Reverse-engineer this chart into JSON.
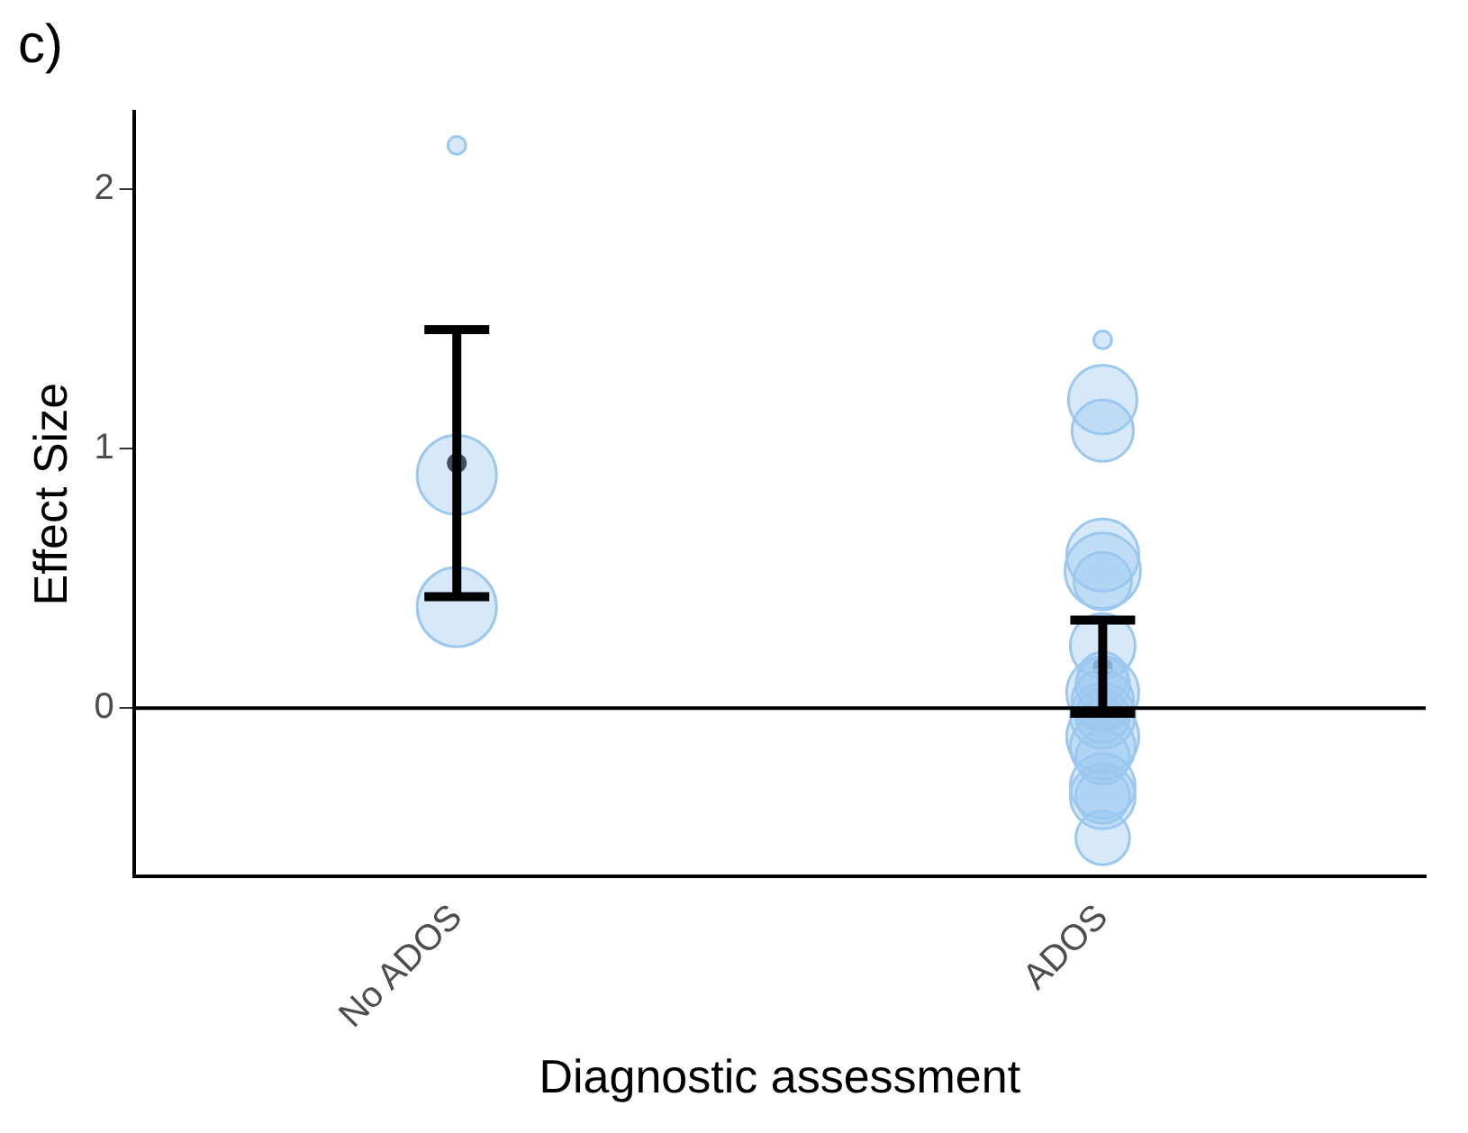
{
  "chart_data": {
    "type": "bubble",
    "title": "c)",
    "xlabel": "Diagnostic assessment",
    "ylabel": "Effect Size",
    "categories": [
      "No ADOS",
      "ADOS"
    ],
    "ylim": [
      -0.65,
      2.3
    ],
    "yticks": [
      0,
      1,
      2
    ],
    "series": [
      {
        "color": "#9cc8f0",
        "x": [
          "No ADOS",
          "No ADOS",
          "No ADOS",
          "ADOS",
          "ADOS",
          "ADOS",
          "ADOS",
          "ADOS",
          "ADOS",
          "ADOS",
          "ADOS",
          "ADOS",
          "ADOS",
          "ADOS",
          "ADOS",
          "ADOS",
          "ADOS",
          "ADOS",
          "ADOS",
          "ADOS",
          "ADOS",
          "ADOS",
          "ADOS"
        ],
        "values": [
          2.17,
          0.9,
          0.39,
          1.42,
          1.19,
          1.07,
          0.53,
          0.59,
          0.49,
          0.24,
          0.06,
          0.03,
          -0.03,
          -0.15,
          -0.3,
          -0.34,
          -0.34,
          -0.11,
          -0.03,
          -0.19,
          -0.5,
          0.09,
          0.12
        ],
        "sizes": [
          0.05,
          1,
          1,
          0.05,
          0.75,
          0.6,
          0.91,
          0.83,
          0.53,
          0.67,
          0.83,
          0.6,
          0.46,
          0.67,
          0.67,
          0.67,
          0.46,
          0.83,
          0.67,
          0.46,
          0.46,
          0.46,
          0.4
        ]
      },
      {
        "type": "scatter",
        "marker": "circle",
        "color": "#000000",
        "x": [
          "No ADOS",
          "ADOS"
        ],
        "values": [
          0.945,
          0.16
        ],
        "errors": [
          [
            0.43,
            1.46
          ],
          [
            -0.02,
            0.34
          ]
        ]
      }
    ],
    "ref_lines": [
      {
        "axis": "y",
        "value": 0,
        "color": "#000000"
      }
    ],
    "grid": false,
    "legend": false
  }
}
